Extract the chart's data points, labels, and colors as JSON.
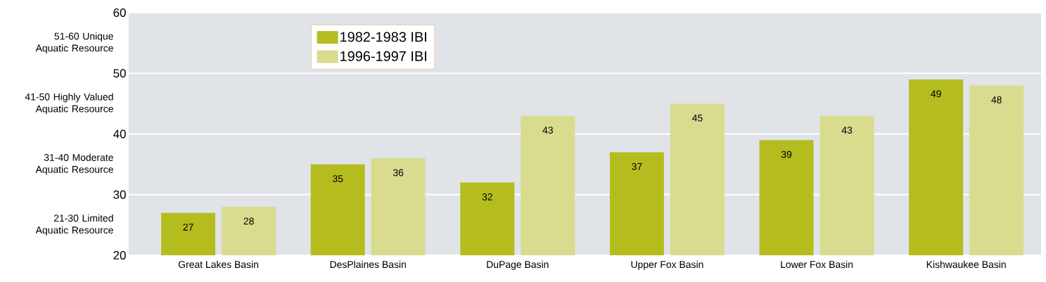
{
  "chart_data": {
    "type": "bar",
    "categories": [
      "Great Lakes Basin",
      "DesPlaines Basin",
      "DuPage Basin",
      "Upper Fox Basin",
      "Lower Fox Basin",
      "Kishwaukee Basin"
    ],
    "series": [
      {
        "name": "1982-1983 IBI",
        "color": "#b5bd1e",
        "values": [
          27,
          35,
          32,
          37,
          39,
          49
        ]
      },
      {
        "name": "1996-1997 IBI",
        "color": "#d9db8f",
        "values": [
          28,
          36,
          43,
          45,
          43,
          48
        ]
      }
    ],
    "ylim": [
      20,
      60
    ],
    "yticks": [
      20,
      30,
      40,
      50,
      60
    ],
    "grid": "y",
    "legend": "top left",
    "data_labels": true,
    "annotations": [
      "51-60 Unique Aquatic Resource",
      "41-50 Highly Valued Aquatic Resource",
      "31-40 Moderate Aquatic Resource",
      "21-30 Limited Aquatic Resource"
    ]
  }
}
